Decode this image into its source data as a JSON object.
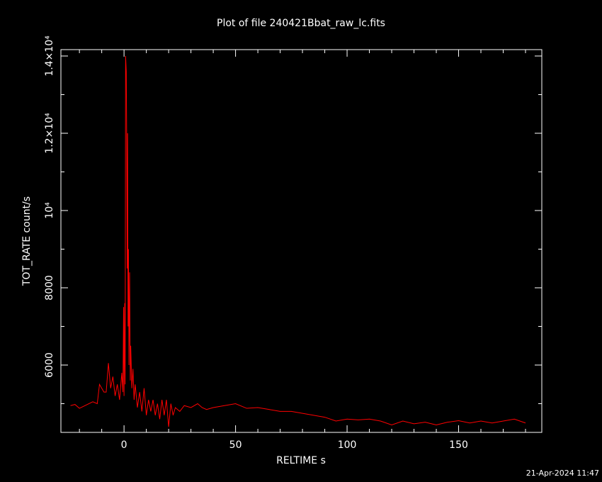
{
  "chart_data": {
    "type": "line",
    "title": "Plot of file 240421Bbat_raw_lc.fits",
    "x_label": "RELTIME  s",
    "y_label": "TOT_RATE  count/s",
    "footer": "21-Apr-2024 11:47",
    "color": "#ff0000",
    "x": [
      -24,
      -22,
      -20,
      -14,
      -12,
      -11,
      -9,
      -8,
      -7,
      -6,
      -5,
      -4,
      -3,
      -2,
      -1,
      -0.5,
      -0.2,
      0,
      0.3,
      0.5,
      0.7,
      1.0,
      1.2,
      1.4,
      1.6,
      1.8,
      2.0,
      2.2,
      2.5,
      2.8,
      3,
      3.5,
      4,
      4.5,
      5,
      6,
      7,
      8,
      9,
      10,
      11,
      12,
      13,
      14,
      15,
      16,
      17,
      18,
      19,
      20,
      21,
      22,
      23,
      25,
      27,
      30,
      33,
      35,
      37,
      40,
      45,
      50,
      55,
      60,
      65,
      70,
      75,
      80,
      85,
      90,
      95,
      100,
      105,
      110,
      115,
      120,
      125,
      130,
      135,
      140,
      145,
      150,
      155,
      160,
      165,
      170,
      175,
      180
    ],
    "values": [
      4950,
      4980,
      4880,
      5050,
      5000,
      5500,
      5300,
      5300,
      6050,
      5400,
      5700,
      5200,
      5500,
      5100,
      5800,
      5300,
      7500,
      5200,
      7600,
      5500,
      14000,
      13600,
      11800,
      8500,
      12000,
      7000,
      9000,
      6000,
      8400,
      5600,
      6500,
      5400,
      5900,
      5100,
      5500,
      4900,
      5300,
      4800,
      5400,
      4700,
      5100,
      4800,
      5100,
      4700,
      5000,
      4600,
      5100,
      4700,
      5100,
      4400,
      5000,
      4700,
      4900,
      4800,
      4950,
      4900,
      5000,
      4900,
      4850,
      4900,
      4950,
      5000,
      4880,
      4900,
      4850,
      4800,
      4800,
      4750,
      4700,
      4650,
      4550,
      4600,
      4580,
      4600,
      4550,
      4450,
      4550,
      4480,
      4520,
      4450,
      4520,
      4560,
      4500,
      4550,
      4500,
      4550,
      4600,
      4500
    ],
    "xlim": [
      -28.3,
      187.3
    ],
    "xticks": [
      0,
      50,
      100,
      150
    ],
    "xminor_ticks": [
      -20,
      -10,
      10,
      20,
      30,
      40,
      60,
      70,
      80,
      90,
      110,
      120,
      130,
      140,
      160,
      170,
      180
    ],
    "ylim": [
      4257,
      14165
    ],
    "yticks": [
      6000,
      8000,
      {
        "value": 10000,
        "label": "10⁴"
      },
      {
        "value": 12000,
        "label": "1.2×10⁴"
      },
      {
        "value": 14000,
        "label": "1.4×10⁴"
      }
    ],
    "yminor_ticks": [
      5000,
      7000,
      9000,
      11000,
      13000
    ]
  }
}
